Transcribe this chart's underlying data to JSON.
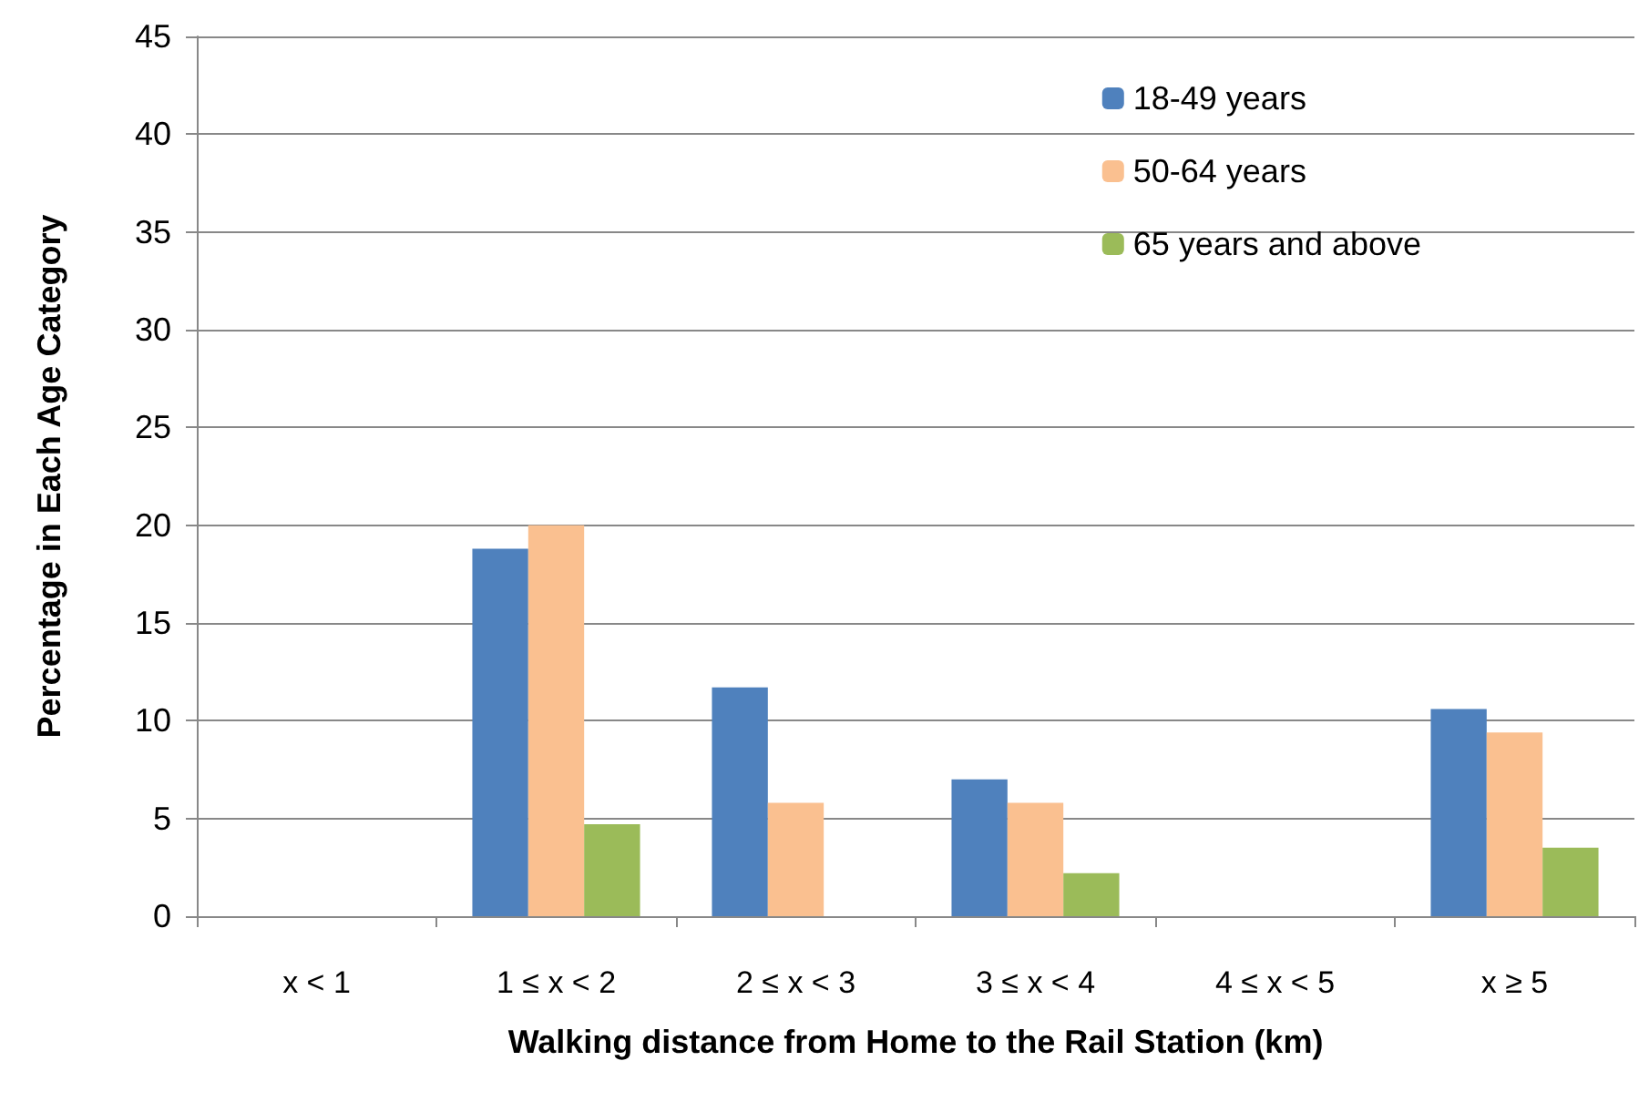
{
  "chart_data": {
    "type": "bar",
    "xlabel": "Walking distance from Home to the Rail Station (km)",
    "ylabel": "Percentage in Each Age Category",
    "categories": [
      "x < 1",
      "1 ≤ x < 2",
      "2 ≤ x < 3",
      "3 ≤ x < 4",
      "4 ≤ x < 5",
      "x ≥ 5"
    ],
    "series": [
      {
        "name": "18-49 years",
        "color": "#4f81bd",
        "values": [
          0,
          18.8,
          11.7,
          7.0,
          0,
          10.6
        ]
      },
      {
        "name": "50-64 years",
        "color": "#fac090",
        "values": [
          0,
          20.0,
          5.8,
          5.8,
          0,
          9.4
        ]
      },
      {
        "name": "65 years and above",
        "color": "#9bbb59",
        "values": [
          0,
          4.7,
          0,
          2.2,
          0,
          3.5
        ]
      }
    ],
    "ylim": [
      0,
      45
    ],
    "yticks": [
      0,
      5,
      10,
      15,
      20,
      25,
      30,
      35,
      40,
      45
    ],
    "grid": "y",
    "legend": "top right"
  }
}
